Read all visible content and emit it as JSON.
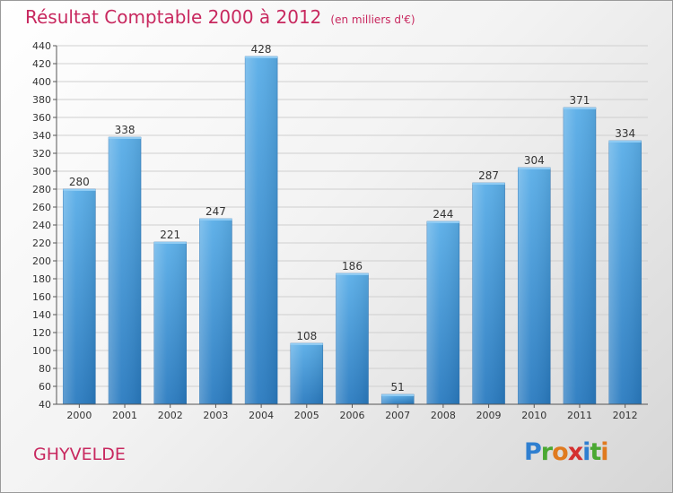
{
  "header": {
    "title": "Résultat Comptable 2000 à 2012",
    "subtitle": "(en milliers d'€)"
  },
  "commune": "GHYVELDE",
  "logo": {
    "text": "Proxiti",
    "letters": [
      {
        "ch": "P",
        "color": "#2f7fd0"
      },
      {
        "ch": "r",
        "color": "#4aa832"
      },
      {
        "ch": "o",
        "color": "#e07a1f"
      },
      {
        "ch": "x",
        "color": "#d42f2f"
      },
      {
        "ch": "i",
        "color": "#2f7fd0"
      },
      {
        "ch": "t",
        "color": "#4aa832"
      },
      {
        "ch": "i",
        "color": "#e07a1f"
      }
    ]
  },
  "colors": {
    "bar_top": "#5aaee8",
    "bar_bottom": "#2a7bc0",
    "grid": "#cfcfcf",
    "title": "#c8285f"
  },
  "chart_data": {
    "type": "bar",
    "categories": [
      "2000",
      "2001",
      "2002",
      "2003",
      "2004",
      "2005",
      "2006",
      "2007",
      "2008",
      "2009",
      "2010",
      "2011",
      "2012"
    ],
    "values": [
      280,
      338,
      221,
      247,
      428,
      108,
      186,
      51,
      244,
      287,
      304,
      371,
      334
    ],
    "ylim": [
      40,
      440
    ],
    "yticks": [
      40,
      60,
      80,
      100,
      120,
      140,
      160,
      180,
      200,
      220,
      240,
      260,
      280,
      300,
      320,
      340,
      360,
      380,
      400,
      420,
      440
    ],
    "grid": true,
    "data_labels": true,
    "title": "Résultat Comptable 2000 à 2012",
    "subtitle": "(en milliers d'€)"
  }
}
